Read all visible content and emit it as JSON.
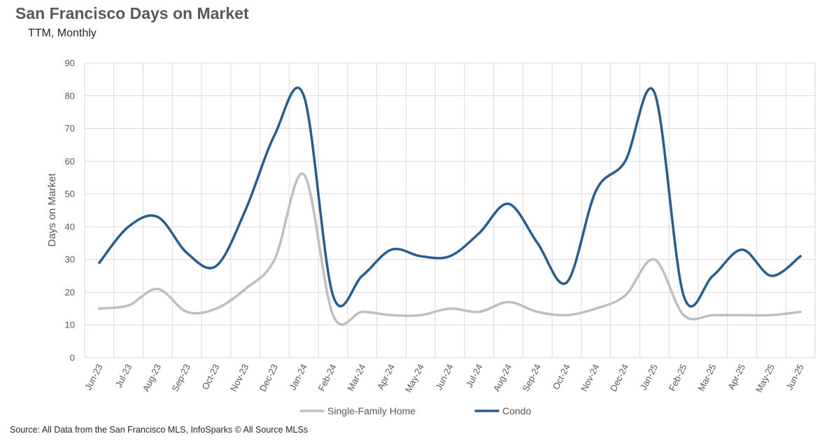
{
  "chart_data": {
    "type": "line",
    "title": "San Francisco Days on Market",
    "subtitle": "TTM, Monthly",
    "xlabel": "",
    "ylabel": "Days on Market",
    "ylim": [
      0,
      90
    ],
    "yticks": [
      0,
      10,
      20,
      30,
      40,
      50,
      60,
      70,
      80,
      90
    ],
    "grid": true,
    "legend_position": "bottom",
    "categories": [
      "Jun-23",
      "Jul-23",
      "Aug-23",
      "Sep-23",
      "Oct-23",
      "Nov-23",
      "Dec-23",
      "Jan-24",
      "Feb-24",
      "Mar-24",
      "Apr-24",
      "May-24",
      "Jun-24",
      "Jul-24",
      "Aug-24",
      "Sep-24",
      "Oct-24",
      "Nov-24",
      "Dec-24",
      "Jan-25",
      "Feb-25",
      "Mar-25",
      "Apr-25",
      "May-25",
      "Jun-25"
    ],
    "series": [
      {
        "name": "Single-Family Home",
        "color": "#bfbfbf",
        "values": [
          15,
          16,
          21,
          14,
          15,
          21,
          30,
          56,
          13,
          14,
          13,
          13,
          15,
          14,
          17,
          14,
          13,
          15,
          19,
          30,
          13,
          13,
          13,
          13,
          14
        ]
      },
      {
        "name": "Condo",
        "color": "#255e91",
        "values": [
          29,
          40,
          43,
          32,
          28,
          45,
          68,
          80,
          19,
          25,
          33,
          31,
          31,
          38,
          47,
          35,
          23,
          51,
          60,
          81,
          19,
          25,
          33,
          25,
          31
        ]
      }
    ]
  },
  "source": "Source: All Data from the San Francisco MLS, InfoSparks © All Source MLSs"
}
